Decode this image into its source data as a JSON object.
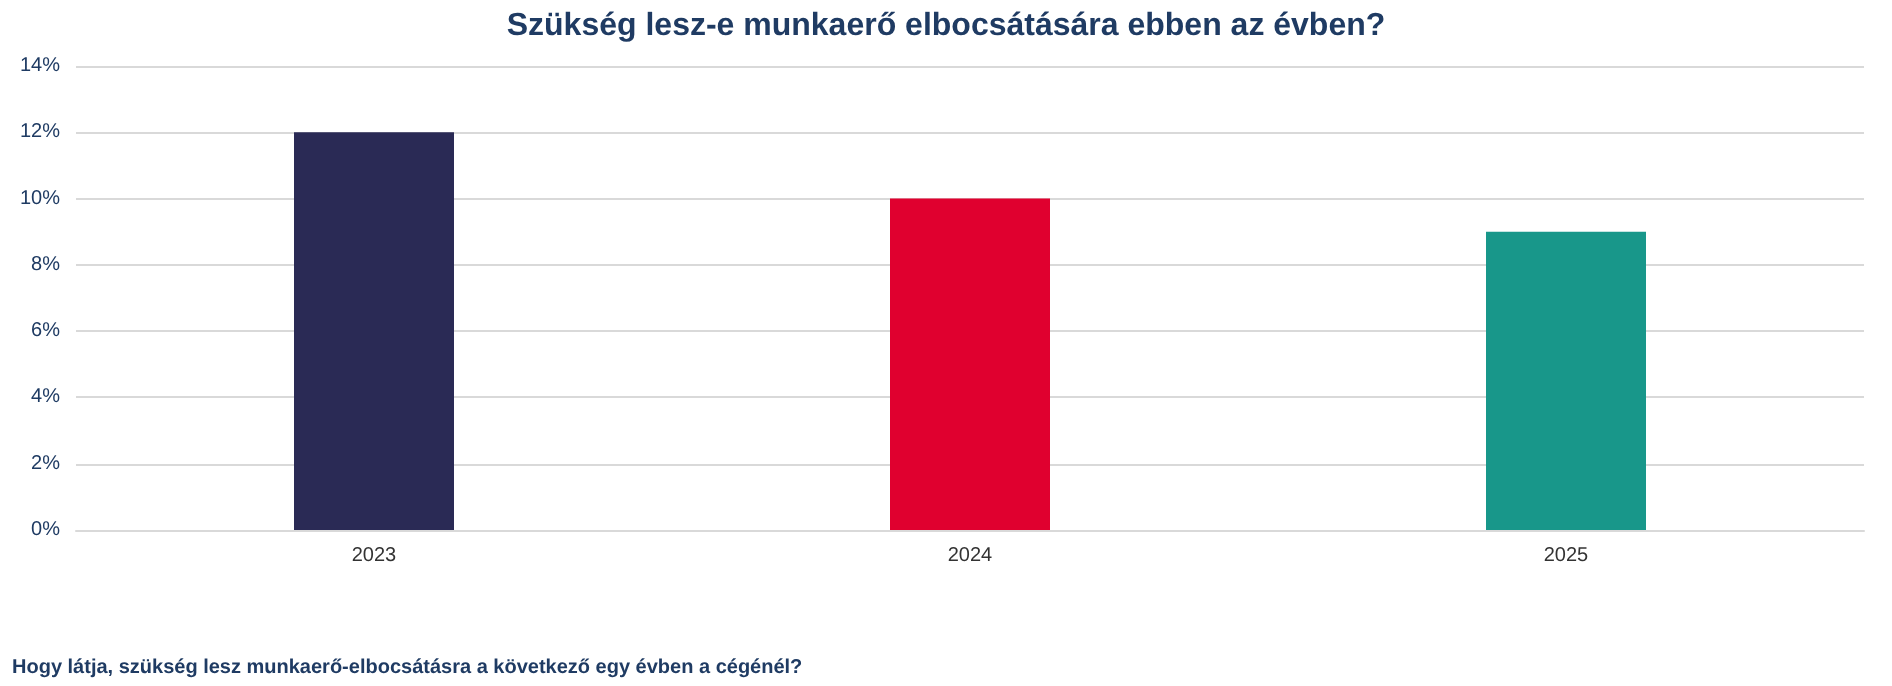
{
  "chart_data": {
    "type": "bar",
    "title": "Szükség lesz-e munkaerő elbocsátására ebben az évben?",
    "categories": [
      "2023",
      "2024",
      "2025"
    ],
    "values": [
      12,
      10,
      9
    ],
    "colors": [
      "#2a2a55",
      "#e0002f",
      "#18978a"
    ],
    "ylim": [
      0,
      14
    ],
    "yticks": [
      {
        "value": 0,
        "label": "0%"
      },
      {
        "value": 2,
        "label": "2%"
      },
      {
        "value": 4,
        "label": "4%"
      },
      {
        "value": 6,
        "label": "6%"
      },
      {
        "value": 8,
        "label": "8%"
      },
      {
        "value": 10,
        "label": "10%"
      },
      {
        "value": 12,
        "label": "12%"
      },
      {
        "value": 14,
        "label": "14%"
      }
    ],
    "grid": "y",
    "annotations": [
      "Hogy látja, szükség lesz munkaerő-elbocsátásra a következő egy évben a cégénél?"
    ]
  }
}
